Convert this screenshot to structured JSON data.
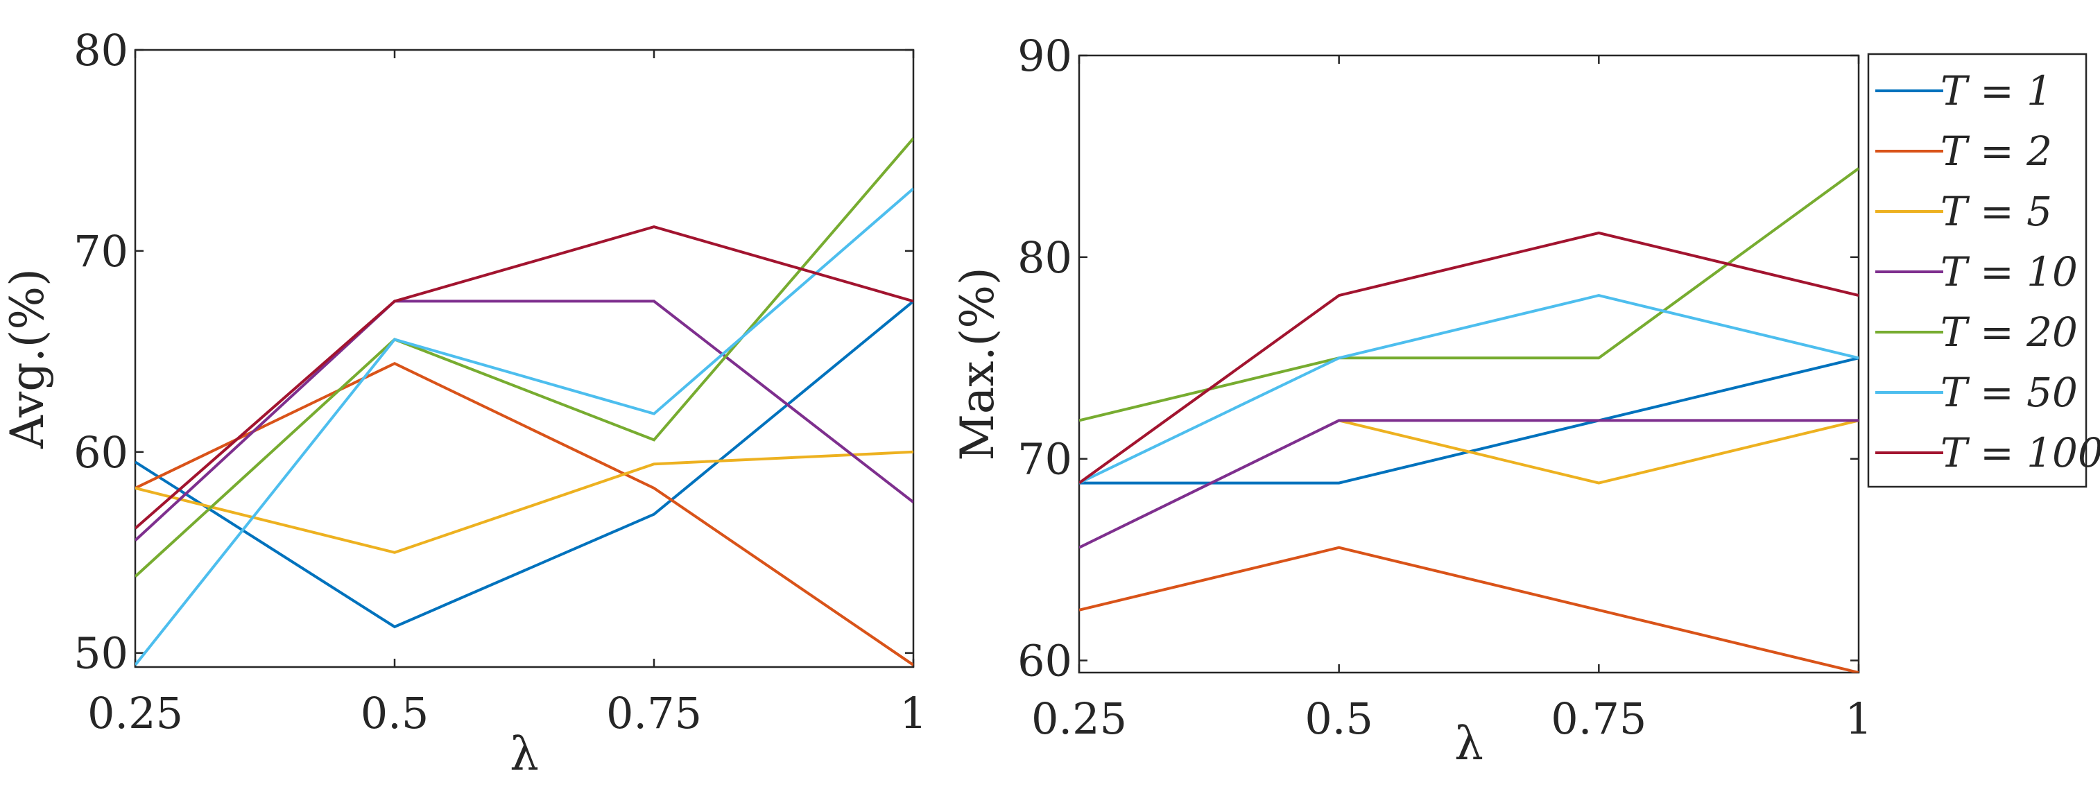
{
  "chart_data": [
    {
      "type": "line",
      "id": "avg",
      "x": [
        0.25,
        0.5,
        0.75,
        1
      ],
      "x_tick_labels": [
        "0.25",
        "0.5",
        "0.75",
        "1"
      ],
      "xlabel": "λ",
      "ylabel": "Avg.(%)",
      "xlim": [
        0.25,
        1
      ],
      "ylim": [
        49.3,
        80
      ],
      "y_ticks": [
        50,
        60,
        70,
        80
      ],
      "y_tick_labels": [
        "50",
        "60",
        "70",
        "80"
      ],
      "series": [
        {
          "name": "T = 1",
          "color": "#0072BD",
          "values": [
            59.5,
            51.3,
            56.9,
            67.5
          ]
        },
        {
          "name": "T = 2",
          "color": "#D95319",
          "values": [
            58.2,
            64.4,
            58.2,
            49.4
          ]
        },
        {
          "name": "T = 5",
          "color": "#EDB120",
          "values": [
            58.2,
            55.0,
            59.4,
            60.0
          ]
        },
        {
          "name": "T = 10",
          "color": "#7E2F8E",
          "values": [
            55.6,
            67.5,
            67.5,
            57.5
          ]
        },
        {
          "name": "T = 20",
          "color": "#77AC30",
          "values": [
            53.8,
            65.6,
            60.6,
            75.6
          ]
        },
        {
          "name": "T = 50",
          "color": "#4DBEEE",
          "values": [
            49.4,
            65.6,
            61.9,
            73.1
          ]
        },
        {
          "name": "T = 100",
          "color": "#A2142F",
          "values": [
            56.2,
            67.5,
            71.2,
            67.5
          ]
        }
      ]
    },
    {
      "type": "line",
      "id": "max",
      "x": [
        0.25,
        0.5,
        0.75,
        1
      ],
      "x_tick_labels": [
        "0.25",
        "0.5",
        "0.75",
        "1"
      ],
      "xlabel": "λ",
      "ylabel": "Max.(%)",
      "xlim": [
        0.25,
        1
      ],
      "ylim": [
        59.4,
        90
      ],
      "y_ticks": [
        60,
        70,
        80,
        90
      ],
      "y_tick_labels": [
        "60",
        "70",
        "80",
        "90"
      ],
      "legend_position": "outside-right",
      "series": [
        {
          "name": "T = 1",
          "color": "#0072BD",
          "values": [
            68.8,
            68.8,
            71.9,
            75.0
          ]
        },
        {
          "name": "T = 2",
          "color": "#D95319",
          "values": [
            62.5,
            65.6,
            62.5,
            59.4
          ]
        },
        {
          "name": "T = 5",
          "color": "#EDB120",
          "values": [
            null,
            71.9,
            68.8,
            71.9
          ]
        },
        {
          "name": "T = 10",
          "color": "#7E2F8E",
          "values": [
            65.6,
            71.9,
            71.9,
            71.9
          ]
        },
        {
          "name": "T = 20",
          "color": "#77AC30",
          "values": [
            71.9,
            75.0,
            75.0,
            84.4
          ]
        },
        {
          "name": "T = 50",
          "color": "#4DBEEE",
          "values": [
            68.8,
            75.0,
            78.1,
            75.0
          ]
        },
        {
          "name": "T = 100",
          "color": "#A2142F",
          "values": [
            68.8,
            78.1,
            81.2,
            78.1
          ]
        }
      ]
    }
  ]
}
